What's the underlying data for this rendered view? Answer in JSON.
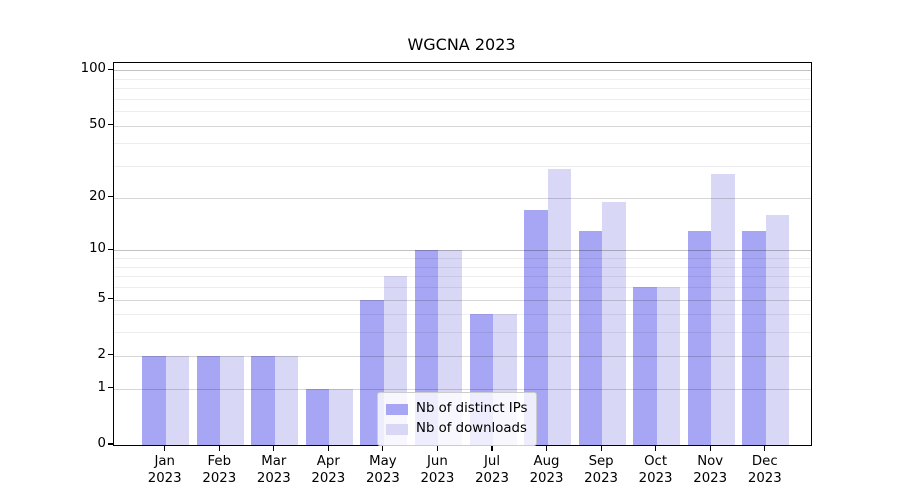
{
  "title": "WGCNA 2023",
  "legend": {
    "items": [
      {
        "label": "Nb of distinct IPs",
        "color": "#a6a6f4"
      },
      {
        "label": "Nb of downloads",
        "color": "#d8d8f6"
      }
    ]
  },
  "chart_data": {
    "type": "bar",
    "title": "WGCNA 2023",
    "categories": [
      "Jan 2023",
      "Feb 2023",
      "Mar 2023",
      "Apr 2023",
      "May 2023",
      "Jun 2023",
      "Jul 2023",
      "Aug 2023",
      "Sep 2023",
      "Oct 2023",
      "Nov 2023",
      "Dec 2023"
    ],
    "x_tick_labels": [
      [
        "Jan",
        "2023"
      ],
      [
        "Feb",
        "2023"
      ],
      [
        "Mar",
        "2023"
      ],
      [
        "Apr",
        "2023"
      ],
      [
        "May",
        "2023"
      ],
      [
        "Jun",
        "2023"
      ],
      [
        "Jul",
        "2023"
      ],
      [
        "Aug",
        "2023"
      ],
      [
        "Sep",
        "2023"
      ],
      [
        "Oct",
        "2023"
      ],
      [
        "Nov",
        "2023"
      ],
      [
        "Dec",
        "2023"
      ]
    ],
    "series": [
      {
        "name": "Nb of distinct IPs",
        "color": "#a6a6f4",
        "values": [
          2,
          2,
          2,
          1,
          5,
          10,
          4,
          17,
          13,
          6,
          13,
          13
        ]
      },
      {
        "name": "Nb of downloads",
        "color": "#d8d8f6",
        "values": [
          2,
          2,
          2,
          1,
          7,
          10,
          4,
          29,
          19,
          6,
          27,
          16
        ]
      }
    ],
    "y_axis": {
      "scale": "log(1+x)",
      "ticks": [
        0,
        1,
        2,
        5,
        10,
        20,
        50,
        100
      ],
      "minor_gridlines": [
        3,
        4,
        6,
        7,
        8,
        9,
        30,
        40,
        60,
        70,
        80,
        90
      ],
      "ylim": [
        0,
        115
      ]
    },
    "grid": true,
    "legend_position": "inside bottom-center",
    "colors": {
      "distinct_ips": "#a6a6f4",
      "downloads": "#d8d8f6",
      "grid_major": "#d6d6d6",
      "grid_minor": "#ededed",
      "axis": "#000000",
      "background": "#ffffff"
    }
  }
}
